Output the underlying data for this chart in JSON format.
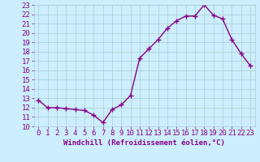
{
  "x": [
    0,
    1,
    2,
    3,
    4,
    5,
    6,
    7,
    8,
    9,
    10,
    11,
    12,
    13,
    14,
    15,
    16,
    17,
    18,
    19,
    20,
    21,
    22,
    23
  ],
  "y": [
    12.8,
    12.0,
    12.0,
    11.9,
    11.8,
    11.7,
    11.2,
    10.4,
    11.8,
    12.3,
    13.3,
    17.3,
    18.3,
    19.3,
    20.5,
    21.3,
    21.8,
    21.8,
    23.0,
    21.9,
    21.5,
    19.3,
    17.8,
    16.5
  ],
  "line_color": "#880088",
  "marker": "+",
  "marker_size": 4,
  "linewidth": 1.0,
  "xlabel": "Windchill (Refroidissement éolien,°C)",
  "xlim": [
    -0.5,
    23.5
  ],
  "ylim": [
    10,
    23
  ],
  "yticks": [
    10,
    11,
    12,
    13,
    14,
    15,
    16,
    17,
    18,
    19,
    20,
    21,
    22,
    23
  ],
  "xticks": [
    0,
    1,
    2,
    3,
    4,
    5,
    6,
    7,
    8,
    9,
    10,
    11,
    12,
    13,
    14,
    15,
    16,
    17,
    18,
    19,
    20,
    21,
    22,
    23
  ],
  "bg_color": "#cceeff",
  "grid_color": "#aacccc",
  "tick_color": "#880088",
  "label_color": "#880088",
  "label_fontsize": 6.5
}
